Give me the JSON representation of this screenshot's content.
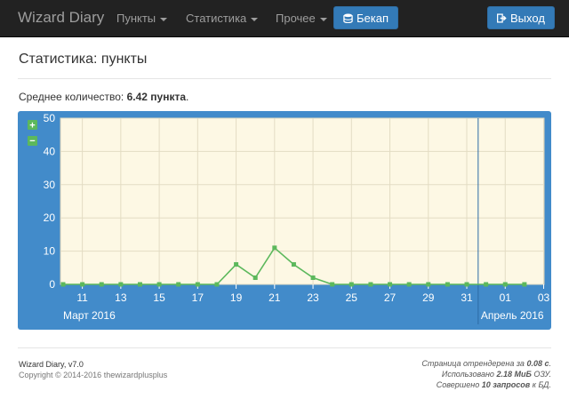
{
  "navbar": {
    "brand": "Wizard Diary",
    "items": [
      {
        "label": "Пункты"
      },
      {
        "label": "Статистика"
      },
      {
        "label": "Прочее"
      }
    ],
    "backup_label": "Бекап",
    "logout_label": "Выход"
  },
  "page": {
    "title": "Статистика: пункты",
    "average_prefix": "Среднее количество: ",
    "average_value": "6.42 пункта",
    "average_suffix": "."
  },
  "chart_data": {
    "type": "line",
    "x": [
      "2016-03-10",
      "2016-03-11",
      "2016-03-12",
      "2016-03-13",
      "2016-03-14",
      "2016-03-15",
      "2016-03-16",
      "2016-03-17",
      "2016-03-18",
      "2016-03-19",
      "2016-03-20",
      "2016-03-21",
      "2016-03-22",
      "2016-03-23",
      "2016-03-24",
      "2016-03-25",
      "2016-03-26",
      "2016-03-27",
      "2016-03-28",
      "2016-03-29",
      "2016-03-30",
      "2016-03-31",
      "2016-04-01",
      "2016-04-02",
      "2016-04-03"
    ],
    "series": [
      {
        "values": [
          0,
          0,
          0,
          0,
          0,
          0,
          0,
          0,
          0,
          6,
          2,
          11,
          6,
          2,
          0,
          0,
          0,
          0,
          0,
          0,
          0,
          0,
          0,
          0,
          0
        ]
      }
    ],
    "ylim": [
      0,
      50
    ],
    "y_ticks": [
      "0",
      "10",
      "20",
      "30",
      "40",
      "50"
    ],
    "x_tick_labels": [
      "11",
      "13",
      "15",
      "17",
      "19",
      "21",
      "23",
      "25",
      "27",
      "29",
      "31",
      "01",
      "03"
    ],
    "month_labels": [
      "Март 2016",
      "Апрель 2016"
    ],
    "zoom_in": "+",
    "zoom_out": "−",
    "grid": true,
    "colors": {
      "line": "#5cb85c",
      "plot_bg": "#fdf8e4",
      "frame": "#428bca"
    }
  },
  "footer": {
    "version": "Wizard Diary, v7.0",
    "copyright": "Copyright © 2014-2016 thewizardplusplus",
    "render_prefix": "Страница отрендерена за ",
    "render_value": "0.08 с",
    "render_suffix": ".",
    "mem_prefix": "Использовано ",
    "mem_value": "2.18 МиБ",
    "mem_suffix": " ОЗУ.",
    "queries_prefix": "Совершено ",
    "queries_value": "10 запросов",
    "queries_suffix": " к БД."
  }
}
